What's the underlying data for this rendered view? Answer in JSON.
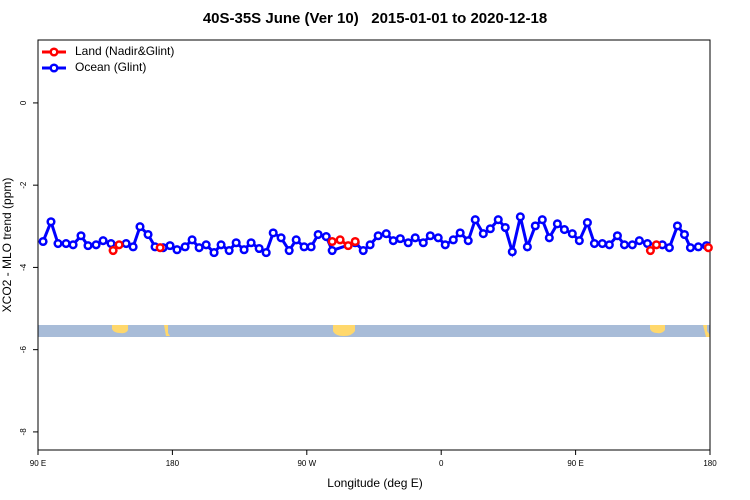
{
  "chart_data": {
    "type": "line",
    "title": "40S-35S June (Ver 10)   2015-01-01 to 2020-12-18",
    "x_label": "Longitude (deg E)",
    "y_label": "XCO2 - MLO trend (ppm)",
    "xlim": [
      90,
      540
    ],
    "xticks": [
      {
        "value": 90,
        "label": "90 E"
      },
      180,
      {
        "value": 270,
        "label": "90 W"
      },
      {
        "value": 360,
        "label": "0"
      },
      {
        "value": 450,
        "label": "90 E"
      },
      {
        "value": 540,
        "label": "180"
      }
    ],
    "ylim": [
      -8.44,
      1.53
    ],
    "yticks": [
      0,
      -2,
      -4,
      -6,
      -8
    ],
    "legend": "top-left",
    "series": [
      {
        "name": "Land (Nadir&Glint)",
        "color": "#ff0000",
        "x": [
          140.3,
          144.3,
          null,
          171.8,
          null,
          287.0,
          292.3,
          297.7,
          302.4,
          null,
          500.1,
          504.1,
          null,
          538.9
        ],
        "values": [
          -3.59,
          -3.45,
          null,
          -3.52,
          null,
          -3.37,
          -3.33,
          -3.47,
          -3.37,
          null,
          -3.59,
          -3.45,
          null,
          -3.52
        ]
      },
      {
        "name": "Ocean (Glint)",
        "color": "#0000ff",
        "x": [
          93.4,
          98.7,
          103.4,
          108.8,
          113.5,
          118.8,
          123.5,
          128.9,
          133.6,
          138.9,
          149.0,
          153.7,
          158.3,
          163.7,
          168.4,
          173.8,
          178.4,
          183.1,
          188.5,
          193.2,
          197.9,
          202.6,
          207.9,
          212.6,
          218.0,
          222.7,
          228.0,
          232.7,
          238.1,
          242.8,
          247.5,
          252.8,
          258.2,
          262.9,
          268.2,
          272.9,
          277.6,
          283.0,
          287.0,
          302.4,
          307.8,
          312.4,
          317.8,
          323.2,
          327.9,
          332.6,
          337.9,
          342.6,
          348.0,
          352.7,
          358.0,
          362.7,
          368.1,
          372.7,
          378.1,
          382.8,
          388.2,
          392.9,
          398.2,
          402.9,
          407.6,
          413.0,
          417.7,
          423.0,
          427.7,
          432.4,
          437.8,
          442.5,
          447.8,
          452.5,
          457.9,
          462.6,
          467.9,
          472.6,
          478.0,
          482.7,
          488.0,
          492.7,
          498.1,
          508.1,
          512.8,
          518.2,
          522.9,
          526.9,
          532.2,
          537.6
        ],
        "values": [
          -3.37,
          -2.89,
          -3.42,
          -3.42,
          -3.45,
          -3.23,
          -3.47,
          -3.45,
          -3.35,
          -3.42,
          -3.42,
          -3.5,
          -3.01,
          -3.2,
          -3.5,
          -3.52,
          -3.47,
          -3.57,
          -3.5,
          -3.33,
          -3.52,
          -3.45,
          -3.64,
          -3.45,
          -3.59,
          -3.4,
          -3.57,
          -3.4,
          -3.54,
          -3.64,
          -3.16,
          -3.28,
          -3.59,
          -3.33,
          -3.5,
          -3.5,
          -3.2,
          -3.25,
          -3.59,
          -3.4,
          -3.59,
          -3.45,
          -3.23,
          -3.18,
          -3.35,
          -3.3,
          -3.4,
          -3.28,
          -3.4,
          -3.23,
          -3.28,
          -3.45,
          -3.33,
          -3.16,
          -3.35,
          -2.84,
          -3.18,
          -3.06,
          -2.84,
          -3.03,
          -3.62,
          -2.77,
          -3.5,
          -2.99,
          -2.84,
          -3.28,
          -2.94,
          -3.08,
          -3.18,
          -3.35,
          -2.91,
          -3.42,
          -3.42,
          -3.45,
          -3.23,
          -3.45,
          -3.45,
          -3.35,
          -3.42,
          -3.45,
          -3.52,
          -2.99,
          -3.2,
          -3.52,
          -3.5,
          -3.47
        ]
      }
    ]
  }
}
